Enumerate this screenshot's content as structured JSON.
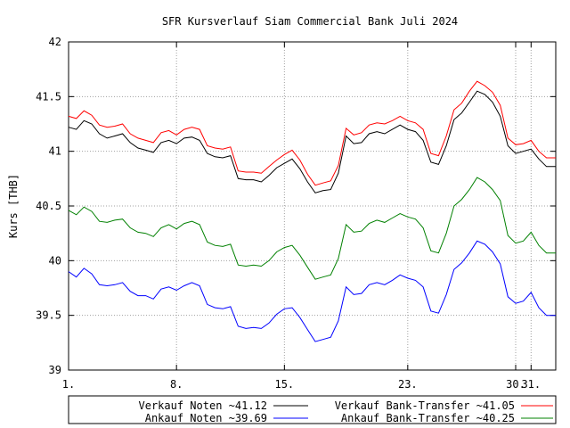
{
  "chart_data": {
    "type": "line",
    "title": "SFR Kursverlauf Siam Commercial Bank Juli 2024",
    "ylabel": "Kurs [THB]",
    "xlabel": "",
    "xlim": [
      1,
      32.6
    ],
    "ylim": [
      39,
      42
    ],
    "grid": true,
    "x_ticks": [
      1,
      8,
      15,
      23,
      30,
      31
    ],
    "x_tick_labels": [
      "1.",
      "8.",
      "15.",
      "23.",
      "30.",
      "31."
    ],
    "y_ticks": [
      39,
      39.5,
      40,
      40.5,
      41,
      41.5,
      42
    ],
    "y_tick_labels": [
      "39",
      "39.5",
      "40",
      "40.5",
      "41",
      "41.5",
      "42"
    ],
    "legend_placement": "bottom",
    "series": [
      {
        "name": "Verkauf Noten ~41.12",
        "color": "#000000",
        "points": [
          [
            1,
            41.22
          ],
          [
            1.5,
            41.2
          ],
          [
            2,
            41.28
          ],
          [
            2.5,
            41.25
          ],
          [
            3,
            41.16
          ],
          [
            3.5,
            41.12
          ],
          [
            4,
            41.14
          ],
          [
            4.5,
            41.16
          ],
          [
            5,
            41.08
          ],
          [
            5.5,
            41.03
          ],
          [
            6,
            41.01
          ],
          [
            6.5,
            40.99
          ],
          [
            7,
            41.08
          ],
          [
            7.5,
            41.1
          ],
          [
            8,
            41.07
          ],
          [
            8.5,
            41.12
          ],
          [
            9,
            41.13
          ],
          [
            9.5,
            41.1
          ],
          [
            10,
            40.98
          ],
          [
            10.5,
            40.95
          ],
          [
            11,
            40.94
          ],
          [
            11.5,
            40.96
          ],
          [
            12,
            40.75
          ],
          [
            12.5,
            40.74
          ],
          [
            13,
            40.74
          ],
          [
            13.5,
            40.72
          ],
          [
            14,
            40.78
          ],
          [
            14.5,
            40.85
          ],
          [
            15,
            40.89
          ],
          [
            15.5,
            40.93
          ],
          [
            16,
            40.84
          ],
          [
            16.5,
            40.72
          ],
          [
            17,
            40.62
          ],
          [
            17.5,
            40.64
          ],
          [
            18,
            40.65
          ],
          [
            18.5,
            40.8
          ],
          [
            19,
            41.14
          ],
          [
            19.5,
            41.07
          ],
          [
            20,
            41.08
          ],
          [
            20.5,
            41.16
          ],
          [
            21,
            41.18
          ],
          [
            21.5,
            41.16
          ],
          [
            22,
            41.2
          ],
          [
            22.5,
            41.24
          ],
          [
            23,
            41.2
          ],
          [
            23.5,
            41.18
          ],
          [
            24,
            41.1
          ],
          [
            24.5,
            40.9
          ],
          [
            25,
            40.88
          ],
          [
            25.5,
            41.05
          ],
          [
            26,
            41.29
          ],
          [
            26.5,
            41.35
          ],
          [
            27,
            41.45
          ],
          [
            27.5,
            41.55
          ],
          [
            28,
            41.52
          ],
          [
            28.5,
            41.45
          ],
          [
            29,
            41.32
          ],
          [
            29.5,
            41.05
          ],
          [
            30,
            40.98
          ],
          [
            30.5,
            41.0
          ],
          [
            31,
            41.02
          ],
          [
            31.5,
            40.93
          ],
          [
            32,
            40.86
          ],
          [
            32.6,
            40.86
          ]
        ]
      },
      {
        "name": "Verkauf Bank-Transfer ~41.05",
        "color": "#ff0000",
        "points": [
          [
            1,
            41.32
          ],
          [
            1.5,
            41.3
          ],
          [
            2,
            41.37
          ],
          [
            2.5,
            41.33
          ],
          [
            3,
            41.24
          ],
          [
            3.5,
            41.22
          ],
          [
            4,
            41.23
          ],
          [
            4.5,
            41.25
          ],
          [
            5,
            41.16
          ],
          [
            5.5,
            41.12
          ],
          [
            6,
            41.1
          ],
          [
            6.5,
            41.08
          ],
          [
            7,
            41.17
          ],
          [
            7.5,
            41.19
          ],
          [
            8,
            41.15
          ],
          [
            8.5,
            41.2
          ],
          [
            9,
            41.22
          ],
          [
            9.5,
            41.2
          ],
          [
            10,
            41.05
          ],
          [
            10.5,
            41.03
          ],
          [
            11,
            41.02
          ],
          [
            11.5,
            41.04
          ],
          [
            12,
            40.82
          ],
          [
            12.5,
            40.81
          ],
          [
            13,
            40.81
          ],
          [
            13.5,
            40.8
          ],
          [
            14,
            40.86
          ],
          [
            14.5,
            40.92
          ],
          [
            15,
            40.97
          ],
          [
            15.5,
            41.01
          ],
          [
            16,
            40.92
          ],
          [
            16.5,
            40.79
          ],
          [
            17,
            40.69
          ],
          [
            17.5,
            40.71
          ],
          [
            18,
            40.73
          ],
          [
            18.5,
            40.87
          ],
          [
            19,
            41.21
          ],
          [
            19.5,
            41.15
          ],
          [
            20,
            41.17
          ],
          [
            20.5,
            41.24
          ],
          [
            21,
            41.26
          ],
          [
            21.5,
            41.25
          ],
          [
            22,
            41.28
          ],
          [
            22.5,
            41.32
          ],
          [
            23,
            41.28
          ],
          [
            23.5,
            41.26
          ],
          [
            24,
            41.2
          ],
          [
            24.5,
            40.98
          ],
          [
            25,
            40.96
          ],
          [
            25.5,
            41.14
          ],
          [
            26,
            41.38
          ],
          [
            26.5,
            41.44
          ],
          [
            27,
            41.55
          ],
          [
            27.5,
            41.64
          ],
          [
            28,
            41.6
          ],
          [
            28.5,
            41.54
          ],
          [
            29,
            41.42
          ],
          [
            29.5,
            41.12
          ],
          [
            30,
            41.06
          ],
          [
            30.5,
            41.07
          ],
          [
            31,
            41.1
          ],
          [
            31.5,
            41.0
          ],
          [
            32,
            40.94
          ],
          [
            32.6,
            40.94
          ]
        ]
      },
      {
        "name": "Ankauf Noten ~39.69",
        "color": "#0000ff",
        "points": [
          [
            1,
            39.9
          ],
          [
            1.5,
            39.85
          ],
          [
            2,
            39.93
          ],
          [
            2.5,
            39.88
          ],
          [
            3,
            39.78
          ],
          [
            3.5,
            39.77
          ],
          [
            4,
            39.78
          ],
          [
            4.5,
            39.8
          ],
          [
            5,
            39.72
          ],
          [
            5.5,
            39.68
          ],
          [
            6,
            39.68
          ],
          [
            6.5,
            39.65
          ],
          [
            7,
            39.74
          ],
          [
            7.5,
            39.76
          ],
          [
            8,
            39.73
          ],
          [
            8.5,
            39.77
          ],
          [
            9,
            39.8
          ],
          [
            9.5,
            39.77
          ],
          [
            10,
            39.6
          ],
          [
            10.5,
            39.57
          ],
          [
            11,
            39.56
          ],
          [
            11.5,
            39.58
          ],
          [
            12,
            39.4
          ],
          [
            12.5,
            39.38
          ],
          [
            13,
            39.39
          ],
          [
            13.5,
            39.38
          ],
          [
            14,
            39.43
          ],
          [
            14.5,
            39.51
          ],
          [
            15,
            39.56
          ],
          [
            15.5,
            39.57
          ],
          [
            16,
            39.48
          ],
          [
            16.5,
            39.37
          ],
          [
            17,
            39.26
          ],
          [
            17.5,
            39.28
          ],
          [
            18,
            39.3
          ],
          [
            18.5,
            39.45
          ],
          [
            19,
            39.76
          ],
          [
            19.5,
            39.69
          ],
          [
            20,
            39.7
          ],
          [
            20.5,
            39.78
          ],
          [
            21,
            39.8
          ],
          [
            21.5,
            39.78
          ],
          [
            22,
            39.82
          ],
          [
            22.5,
            39.87
          ],
          [
            23,
            39.84
          ],
          [
            23.5,
            39.82
          ],
          [
            24,
            39.76
          ],
          [
            24.5,
            39.54
          ],
          [
            25,
            39.52
          ],
          [
            25.5,
            39.69
          ],
          [
            26,
            39.92
          ],
          [
            26.5,
            39.98
          ],
          [
            27,
            40.07
          ],
          [
            27.5,
            40.18
          ],
          [
            28,
            40.15
          ],
          [
            28.5,
            40.08
          ],
          [
            29,
            39.97
          ],
          [
            29.5,
            39.67
          ],
          [
            30,
            39.61
          ],
          [
            30.5,
            39.63
          ],
          [
            31,
            39.71
          ],
          [
            31.5,
            39.57
          ],
          [
            32,
            39.5
          ],
          [
            32.6,
            39.5
          ]
        ]
      },
      {
        "name": "Ankauf Bank-Transfer ~40.25",
        "color": "#008000",
        "points": [
          [
            1,
            40.46
          ],
          [
            1.5,
            40.42
          ],
          [
            2,
            40.49
          ],
          [
            2.5,
            40.45
          ],
          [
            3,
            40.36
          ],
          [
            3.5,
            40.35
          ],
          [
            4,
            40.37
          ],
          [
            4.5,
            40.38
          ],
          [
            5,
            40.3
          ],
          [
            5.5,
            40.26
          ],
          [
            6,
            40.25
          ],
          [
            6.5,
            40.22
          ],
          [
            7,
            40.3
          ],
          [
            7.5,
            40.33
          ],
          [
            8,
            40.29
          ],
          [
            8.5,
            40.34
          ],
          [
            9,
            40.36
          ],
          [
            9.5,
            40.33
          ],
          [
            10,
            40.17
          ],
          [
            10.5,
            40.14
          ],
          [
            11,
            40.13
          ],
          [
            11.5,
            40.15
          ],
          [
            12,
            39.96
          ],
          [
            12.5,
            39.95
          ],
          [
            13,
            39.96
          ],
          [
            13.5,
            39.95
          ],
          [
            14,
            40.0
          ],
          [
            14.5,
            40.08
          ],
          [
            15,
            40.12
          ],
          [
            15.5,
            40.14
          ],
          [
            16,
            40.05
          ],
          [
            16.5,
            39.94
          ],
          [
            17,
            39.83
          ],
          [
            17.5,
            39.85
          ],
          [
            18,
            39.87
          ],
          [
            18.5,
            40.02
          ],
          [
            19,
            40.33
          ],
          [
            19.5,
            40.26
          ],
          [
            20,
            40.27
          ],
          [
            20.5,
            40.34
          ],
          [
            21,
            40.37
          ],
          [
            21.5,
            40.35
          ],
          [
            22,
            40.39
          ],
          [
            22.5,
            40.43
          ],
          [
            23,
            40.4
          ],
          [
            23.5,
            40.38
          ],
          [
            24,
            40.3
          ],
          [
            24.5,
            40.09
          ],
          [
            25,
            40.07
          ],
          [
            25.5,
            40.25
          ],
          [
            26,
            40.5
          ],
          [
            26.5,
            40.56
          ],
          [
            27,
            40.65
          ],
          [
            27.5,
            40.76
          ],
          [
            28,
            40.72
          ],
          [
            28.5,
            40.65
          ],
          [
            29,
            40.55
          ],
          [
            29.5,
            40.23
          ],
          [
            30,
            40.16
          ],
          [
            30.5,
            40.18
          ],
          [
            31,
            40.26
          ],
          [
            31.5,
            40.14
          ],
          [
            32,
            40.07
          ],
          [
            32.6,
            40.07
          ]
        ]
      }
    ]
  }
}
